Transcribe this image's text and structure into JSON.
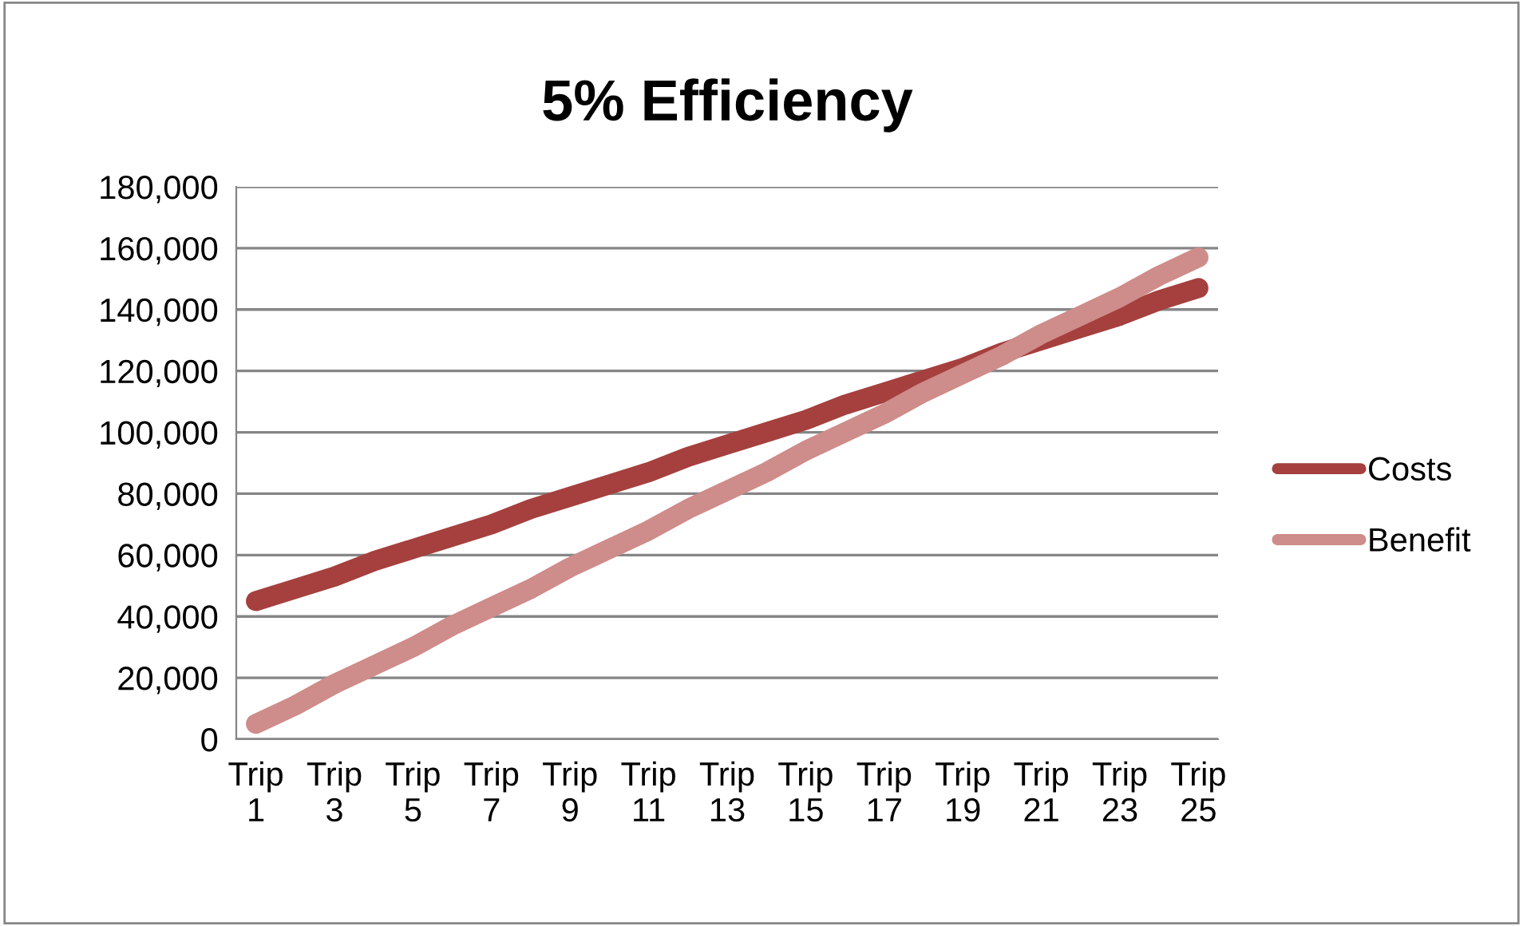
{
  "chart_data": {
    "type": "line",
    "title": "5% Efficiency",
    "categories": [
      "Trip 1",
      null,
      "Trip 3",
      null,
      "Trip 5",
      null,
      "Trip 7",
      null,
      "Trip 9",
      null,
      "Trip 11",
      null,
      "Trip 13",
      null,
      "Trip 15",
      null,
      "Trip 17",
      null,
      "Trip 19",
      null,
      "Trip 21",
      null,
      "Trip 23",
      null,
      "Trip 25"
    ],
    "series": [
      {
        "name": "Costs",
        "color": "#a5403e",
        "values": [
          45000,
          49000,
          53000,
          58000,
          62000,
          66000,
          70000,
          75000,
          79000,
          83000,
          87000,
          92000,
          96000,
          100000,
          104000,
          109000,
          113000,
          117000,
          121000,
          126000,
          130000,
          134000,
          138000,
          143000,
          147000
        ]
      },
      {
        "name": "Benefit",
        "color": "#ce8c8a",
        "values": [
          5000,
          11000,
          18000,
          24000,
          30000,
          37000,
          43000,
          49000,
          56000,
          62000,
          68000,
          75000,
          81000,
          87000,
          94000,
          100000,
          106000,
          113000,
          119000,
          125000,
          132000,
          138000,
          144000,
          151000,
          157000
        ]
      }
    ],
    "ylim": [
      0,
      180000
    ],
    "yticks": [
      {
        "value": 0,
        "label": "0"
      },
      {
        "value": 20000,
        "label": "20,000"
      },
      {
        "value": 40000,
        "label": "40,000"
      },
      {
        "value": 60000,
        "label": "60,000"
      },
      {
        "value": 80000,
        "label": "80,000"
      },
      {
        "value": 100000,
        "label": "100,000"
      },
      {
        "value": 120000,
        "label": "120,000"
      },
      {
        "value": 140000,
        "label": "140,000"
      },
      {
        "value": 160000,
        "label": "160,000"
      },
      {
        "value": 180000,
        "label": "180,000"
      }
    ],
    "grid": "y",
    "legend": "right",
    "marker": "none",
    "line_style": "solid"
  }
}
